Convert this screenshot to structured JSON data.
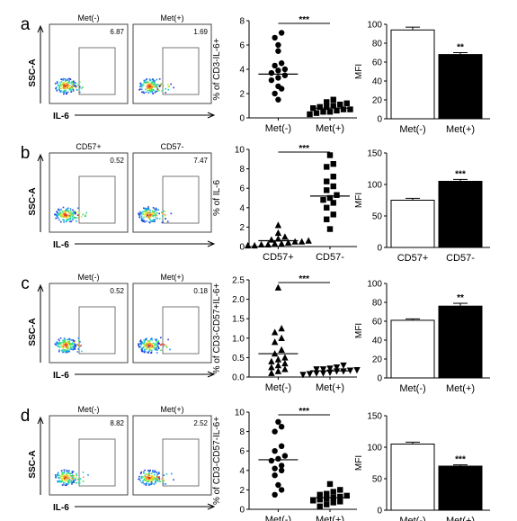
{
  "panels": [
    {
      "letter": "a",
      "flow": {
        "ylabel": "SSC-A",
        "xlabel": "IL-6",
        "plots": [
          {
            "title": "Met(-)",
            "value": "6.87"
          },
          {
            "title": "Met(+)",
            "value": "1.69"
          }
        ]
      },
      "scatter": {
        "type": "scatter",
        "ylabel": "% of CD3-IL-6+",
        "ylim": [
          0,
          8
        ],
        "yticks": [
          "0",
          "2",
          "4",
          "6",
          "8"
        ],
        "categories": [
          "Met(-)",
          "Met(+)"
        ],
        "markers": [
          "circle",
          "square"
        ],
        "series": [
          {
            "values": [
              7.0,
              6.6,
              6.0,
              5.5,
              4.5,
              4.3,
              4.0,
              3.9,
              3.7,
              3.5,
              3.3,
              3.1,
              2.6,
              2.4,
              2.0,
              1.5
            ]
          },
          {
            "values": [
              1.5,
              1.3,
              1.2,
              1.1,
              1.0,
              0.9,
              0.9,
              0.8,
              0.7,
              0.7,
              0.6,
              0.5,
              0.5,
              0.4,
              0.3
            ]
          }
        ],
        "means": [
          3.6,
          0.8
        ],
        "significance": "***"
      },
      "bar": {
        "type": "bar",
        "ylabel": "MFI",
        "ylim": [
          0,
          100
        ],
        "yticks": [
          "0",
          "20",
          "40",
          "60",
          "80",
          "100"
        ],
        "categories": [
          "Met(-)",
          "Met(+)"
        ],
        "values": [
          94,
          68
        ],
        "errors": [
          3,
          2
        ],
        "fills": [
          "#ffffff",
          "#000000"
        ],
        "significance": "**"
      }
    },
    {
      "letter": "b",
      "flow": {
        "ylabel": "SSC-A",
        "xlabel": "IL-6",
        "plots": [
          {
            "title": "CD57+",
            "value": "0.52"
          },
          {
            "title": "CD57-",
            "value": "7.47"
          }
        ]
      },
      "scatter": {
        "type": "scatter",
        "ylabel": "% of IL-6",
        "ylim": [
          0,
          10
        ],
        "yticks": [
          "0",
          "2",
          "4",
          "6",
          "8",
          "10"
        ],
        "categories": [
          "CD57+",
          "CD57-"
        ],
        "markers": [
          "triangle",
          "square"
        ],
        "series": [
          {
            "values": [
              2.2,
              1.4,
              1.0,
              0.8,
              0.7,
              0.6,
              0.5,
              0.5,
              0.4,
              0.3,
              0.3,
              0.2,
              0.2,
              0.1,
              0.1
            ]
          },
          {
            "values": [
              9.4,
              8.5,
              8.2,
              7.2,
              6.7,
              6.2,
              5.8,
              5.3,
              5.0,
              4.8,
              4.5,
              4.0,
              3.3,
              2.8,
              1.8
            ]
          }
        ],
        "means": [
          0.6,
          5.2
        ],
        "significance": "***"
      },
      "bar": {
        "type": "bar",
        "ylabel": "MFI",
        "ylim": [
          0,
          150
        ],
        "yticks": [
          "0",
          "50",
          "100",
          "150"
        ],
        "categories": [
          "CD57+",
          "CD57-"
        ],
        "values": [
          75,
          105
        ],
        "errors": [
          3,
          3
        ],
        "fills": [
          "#ffffff",
          "#000000"
        ],
        "significance": "***"
      }
    },
    {
      "letter": "c",
      "flow": {
        "ylabel": "SSC-A",
        "xlabel": "IL-6",
        "plots": [
          {
            "title": "Met(-)",
            "value": "0.52"
          },
          {
            "title": "Met(+)",
            "value": "0.18"
          }
        ]
      },
      "scatter": {
        "type": "scatter",
        "ylabel": "% of CD3-CD57+IL-6+",
        "ylim": [
          0,
          2.5
        ],
        "yticks": [
          "0.0",
          "0.5",
          "1.0",
          "1.5",
          "2.0",
          "2.5"
        ],
        "categories": [
          "Met(-)",
          "Met(+)"
        ],
        "markers": [
          "triangle",
          "invtriangle"
        ],
        "series": [
          {
            "values": [
              2.3,
              1.25,
              1.15,
              1.0,
              0.9,
              0.7,
              0.6,
              0.5,
              0.45,
              0.4,
              0.35,
              0.3,
              0.25,
              0.2,
              0.15,
              0.1
            ]
          },
          {
            "values": [
              0.3,
              0.25,
              0.22,
              0.2,
              0.2,
              0.18,
              0.17,
              0.15,
              0.15,
              0.12,
              0.1,
              0.1,
              0.08,
              0.06
            ]
          }
        ],
        "means": [
          0.6,
          0.16
        ],
        "significance": "***"
      },
      "bar": {
        "type": "bar",
        "ylabel": "MFI",
        "ylim": [
          0,
          100
        ],
        "yticks": [
          "0",
          "20",
          "40",
          "60",
          "80",
          "100"
        ],
        "categories": [
          "Met(-)",
          "Met(+)"
        ],
        "values": [
          61,
          76
        ],
        "errors": [
          1.5,
          3
        ],
        "fills": [
          "#ffffff",
          "#000000"
        ],
        "significance": "**"
      }
    },
    {
      "letter": "d",
      "flow": {
        "ylabel": "SSC-A",
        "xlabel": "IL-6",
        "plots": [
          {
            "title": "Met(-)",
            "value": "8.82"
          },
          {
            "title": "Met(+)",
            "value": "2.52"
          }
        ]
      },
      "scatter": {
        "type": "scatter",
        "ylabel": "% of CD3-CD57-IL-6+",
        "ylim": [
          0,
          10
        ],
        "yticks": [
          "0",
          "2",
          "4",
          "6",
          "8",
          "10"
        ],
        "categories": [
          "Met(-)",
          "Met(+)"
        ],
        "markers": [
          "circle",
          "square"
        ],
        "series": [
          {
            "values": [
              9.0,
              8.5,
              8.0,
              6.5,
              6.0,
              5.5,
              5.2,
              5.0,
              4.5,
              4.2,
              4.0,
              3.5,
              2.5,
              2.0,
              1.5
            ]
          },
          {
            "values": [
              2.6,
              2.0,
              1.8,
              1.6,
              1.5,
              1.4,
              1.3,
              1.2,
              1.1,
              1.0,
              0.9,
              0.8,
              0.7,
              0.5,
              0.3
            ]
          }
        ],
        "means": [
          5.1,
          1.2
        ],
        "significance": "***"
      },
      "bar": {
        "type": "bar",
        "ylabel": "MFI",
        "ylim": [
          0,
          150
        ],
        "yticks": [
          "0",
          "50",
          "100",
          "150"
        ],
        "categories": [
          "Met(-)",
          "Met(+)"
        ],
        "values": [
          105,
          70
        ],
        "errors": [
          3,
          2
        ],
        "fills": [
          "#ffffff",
          "#000000"
        ],
        "significance": "***"
      }
    }
  ]
}
